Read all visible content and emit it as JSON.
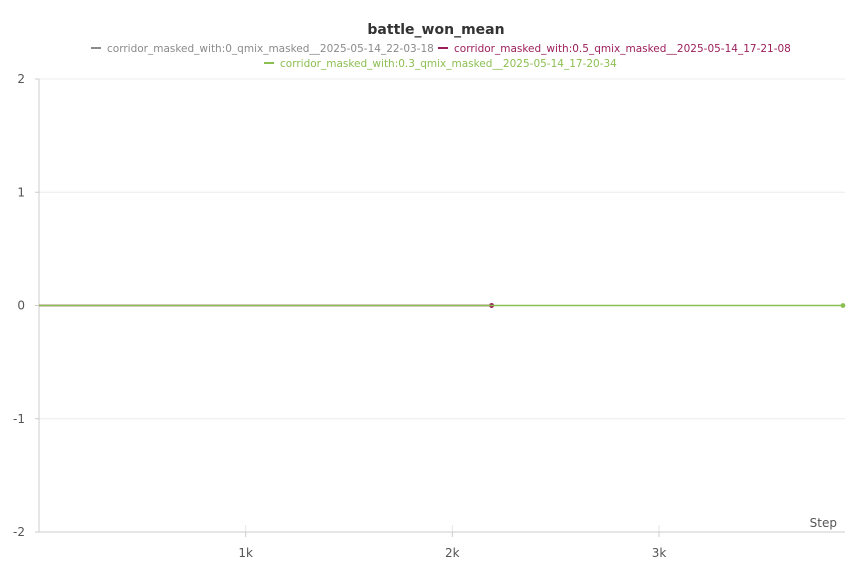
{
  "chart_data": {
    "type": "line",
    "title": "battle_won_mean",
    "xlabel": "Step",
    "ylabel": "",
    "xlim": [
      0,
      3900
    ],
    "ylim": [
      -2,
      2
    ],
    "x_ticks": [
      1000,
      2000,
      3000
    ],
    "x_tick_labels": [
      "1k",
      "2k",
      "3k"
    ],
    "y_ticks": [
      2,
      1,
      0,
      -1,
      -2
    ],
    "y_tick_labels": [
      "2",
      "1",
      "0",
      "-1",
      "-2"
    ],
    "grid": true,
    "legend_position": "top",
    "series": [
      {
        "name": "corridor_masked_with:0_qmix_masked__2025-05-14_22-03-18",
        "color": "#8a8a8a",
        "x": [
          0,
          2190
        ],
        "y": [
          0,
          0
        ]
      },
      {
        "name": "corridor_masked_with:0.5_qmix_masked__2025-05-14_17-21-08",
        "color": "#9c1f5c",
        "x": [
          0,
          2190
        ],
        "y": [
          0,
          0
        ]
      },
      {
        "name": "corridor_masked_with:0.3_qmix_masked__2025-05-14_17-20-34",
        "color": "#8cbf52",
        "x": [
          0,
          3890
        ],
        "y": [
          0,
          0
        ]
      }
    ]
  }
}
